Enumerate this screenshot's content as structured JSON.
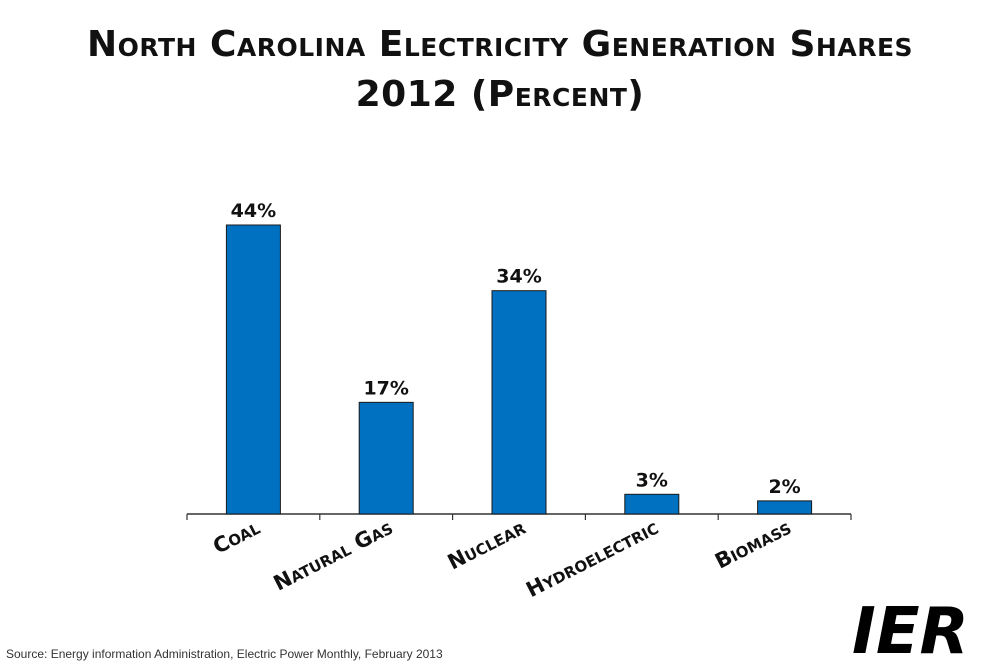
{
  "chart_data": {
    "type": "bar",
    "title": "North Carolina Electricity Generation Shares",
    "subtitle": "2012 (Percent)",
    "categories": [
      "Coal",
      "Natural Gas",
      "Nuclear",
      "Hydroelectric",
      "Biomass"
    ],
    "values": [
      44,
      17,
      34,
      3,
      2
    ],
    "value_labels": [
      "44%",
      "17%",
      "34%",
      "3%",
      "2%"
    ],
    "ylim": [
      0,
      44
    ],
    "xlabel": "",
    "ylabel": "",
    "grid": false,
    "bar_color": "#0070C0"
  },
  "source": "Source: Energy information Administration, Electric Power Monthly, February 2013",
  "logo": {
    "text": "IER",
    "color": "#000000",
    "accent": "#0070C0"
  }
}
